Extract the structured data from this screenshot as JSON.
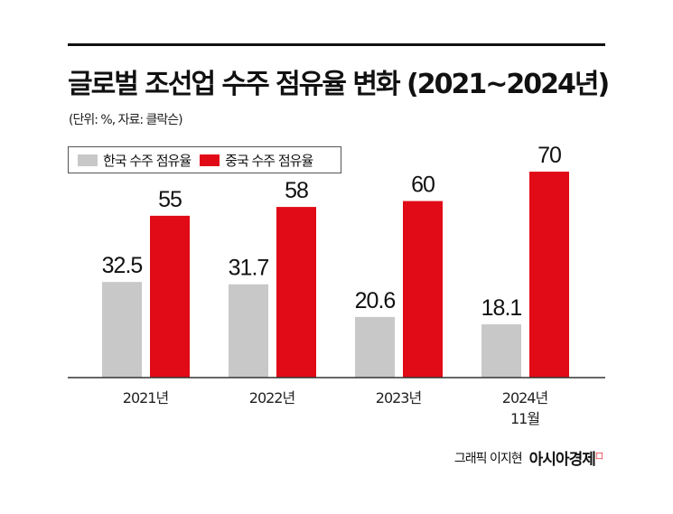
{
  "title": "글로벌 조선업 수주 점유율 변화 (2021~2024년)",
  "subtitle": "(단위: %, 자료: 클락슨)",
  "credit": "그래픽 이지현",
  "brand": "아시아경제",
  "chart_data": {
    "type": "bar",
    "categories": [
      "2021년",
      "2022년",
      "2023년",
      "2024년\n11월"
    ],
    "series": [
      {
        "name": "한국 수주 점유율",
        "values": [
          32.5,
          31.7,
          20.6,
          18.1
        ],
        "color": "#c8c8c8"
      },
      {
        "name": "중국 수주 점유율",
        "values": [
          55,
          58,
          60,
          70
        ],
        "color": "#e10a17"
      }
    ],
    "ylim": [
      0,
      70
    ],
    "grid": false,
    "legend": "top-left"
  }
}
